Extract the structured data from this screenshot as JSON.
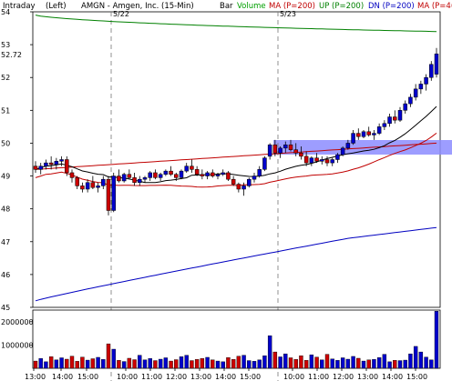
{
  "header": {
    "interval": "Intraday",
    "side": "(Left)",
    "symbol_title": "AMGN - Amgen, Inc. (15-Min)",
    "legend": [
      {
        "label": "Bar",
        "color": "#000000"
      },
      {
        "label": "Volume",
        "color": "#00a000"
      },
      {
        "label": "MA (P=200)",
        "color": "#c00000"
      },
      {
        "label": "UP (P=200)",
        "color": "#008000"
      },
      {
        "label": "DN (P=200)",
        "color": "#0000c0"
      },
      {
        "label": "MA (P=4(",
        "color": "#c00000"
      }
    ]
  },
  "colors": {
    "up_candle": "#0000cc",
    "down_candle": "#cc0000",
    "ma200": "#c00000",
    "upper_band": "#008000",
    "lower_band": "#0000c0",
    "ma_short": "#000000",
    "highlight_band": "#8c8cff",
    "session_divider": "#777777"
  },
  "chart_data": [
    {
      "type": "candlestick",
      "title": "AMGN - Amgen, Inc. (15-Min)",
      "session_labels": [
        "5/22",
        "5/23"
      ],
      "last_price_label": "52.72",
      "ylim": [
        45,
        54
      ],
      "y_ticks": [
        "54",
        "53",
        "52",
        "51",
        "50",
        "49",
        "48",
        "47",
        "46",
        "45"
      ],
      "x_ticks": [
        "13:00",
        "14:00",
        "15:00",
        "10:00",
        "11:00",
        "12:00",
        "13:00",
        "14:00",
        "15:00",
        "10:00",
        "11:00",
        "12:00",
        "13:00",
        "14:00",
        "15:00"
      ],
      "candles": [
        [
          49.3,
          49.45,
          49.1,
          49.2
        ],
        [
          49.2,
          49.4,
          49.05,
          49.3
        ],
        [
          49.3,
          49.5,
          49.2,
          49.4
        ],
        [
          49.4,
          49.6,
          49.2,
          49.35
        ],
        [
          49.35,
          49.55,
          49.2,
          49.45
        ],
        [
          49.45,
          49.6,
          49.3,
          49.5
        ],
        [
          49.5,
          49.6,
          49.0,
          49.1
        ],
        [
          49.1,
          49.2,
          48.8,
          48.95
        ],
        [
          48.95,
          49.0,
          48.6,
          48.7
        ],
        [
          48.7,
          48.8,
          48.5,
          48.6
        ],
        [
          48.6,
          48.9,
          48.5,
          48.8
        ],
        [
          48.8,
          49.0,
          48.6,
          48.65
        ],
        [
          48.65,
          48.8,
          48.5,
          48.7
        ],
        [
          48.7,
          49.0,
          48.6,
          48.9
        ],
        [
          48.9,
          49.0,
          47.8,
          47.95
        ],
        [
          47.95,
          49.1,
          47.9,
          49.0
        ],
        [
          49.0,
          49.2,
          48.8,
          48.85
        ],
        [
          48.85,
          49.1,
          48.8,
          49.05
        ],
        [
          49.05,
          49.2,
          48.9,
          48.95
        ],
        [
          48.95,
          49.1,
          48.7,
          48.8
        ],
        [
          48.8,
          49.0,
          48.7,
          48.9
        ],
        [
          48.9,
          49.0,
          48.8,
          48.95
        ],
        [
          48.95,
          49.15,
          48.85,
          49.1
        ],
        [
          49.1,
          49.2,
          48.9,
          48.95
        ],
        [
          48.95,
          49.1,
          48.85,
          49.05
        ],
        [
          49.05,
          49.2,
          49.0,
          49.15
        ],
        [
          49.15,
          49.3,
          49.0,
          49.05
        ],
        [
          49.05,
          49.1,
          48.85,
          48.95
        ],
        [
          48.95,
          49.2,
          48.9,
          49.15
        ],
        [
          49.15,
          49.4,
          49.1,
          49.3
        ],
        [
          49.3,
          49.5,
          49.1,
          49.2
        ],
        [
          49.2,
          49.3,
          49.0,
          49.05
        ],
        [
          49.05,
          49.2,
          48.9,
          49.0
        ],
        [
          49.0,
          49.15,
          48.9,
          49.1
        ],
        [
          49.1,
          49.2,
          48.95,
          49.0
        ],
        [
          49.0,
          49.1,
          48.9,
          49.05
        ],
        [
          49.05,
          49.2,
          49.0,
          49.1
        ],
        [
          49.1,
          49.15,
          48.85,
          48.9
        ],
        [
          48.9,
          49.0,
          48.7,
          48.75
        ],
        [
          48.75,
          48.8,
          48.5,
          48.6
        ],
        [
          48.6,
          48.8,
          48.4,
          48.7
        ],
        [
          48.7,
          48.95,
          48.65,
          48.9
        ],
        [
          48.9,
          49.1,
          48.8,
          49.0
        ],
        [
          49.0,
          49.3,
          48.95,
          49.2
        ],
        [
          49.2,
          49.6,
          49.15,
          49.55
        ],
        [
          49.6,
          50.0,
          49.5,
          49.95
        ],
        [
          49.95,
          50.1,
          49.6,
          49.7
        ],
        [
          49.7,
          49.9,
          49.55,
          49.85
        ],
        [
          49.85,
          50.05,
          49.7,
          49.95
        ],
        [
          49.95,
          50.1,
          49.75,
          49.8
        ],
        [
          49.8,
          50.0,
          49.6,
          49.7
        ],
        [
          49.7,
          49.9,
          49.5,
          49.6
        ],
        [
          49.6,
          49.75,
          49.3,
          49.4
        ],
        [
          49.4,
          49.6,
          49.3,
          49.55
        ],
        [
          49.55,
          49.7,
          49.4,
          49.45
        ],
        [
          49.45,
          49.6,
          49.35,
          49.5
        ],
        [
          49.5,
          49.6,
          49.3,
          49.4
        ],
        [
          49.4,
          49.55,
          49.3,
          49.5
        ],
        [
          49.5,
          49.7,
          49.4,
          49.65
        ],
        [
          49.65,
          49.9,
          49.6,
          49.85
        ],
        [
          49.85,
          50.1,
          49.8,
          50.0
        ],
        [
          50.0,
          50.4,
          49.95,
          50.3
        ],
        [
          50.3,
          50.45,
          50.1,
          50.2
        ],
        [
          50.2,
          50.4,
          50.15,
          50.35
        ],
        [
          50.35,
          50.5,
          50.2,
          50.25
        ],
        [
          50.25,
          50.4,
          50.1,
          50.3
        ],
        [
          50.3,
          50.6,
          50.25,
          50.5
        ],
        [
          50.5,
          50.7,
          50.4,
          50.6
        ],
        [
          50.6,
          50.9,
          50.5,
          50.8
        ],
        [
          50.8,
          51.0,
          50.6,
          50.7
        ],
        [
          50.7,
          51.1,
          50.65,
          51.0
        ],
        [
          51.0,
          51.3,
          50.9,
          51.2
        ],
        [
          51.2,
          51.5,
          51.1,
          51.4
        ],
        [
          51.4,
          51.8,
          51.3,
          51.65
        ],
        [
          51.65,
          51.9,
          51.5,
          51.8
        ],
        [
          51.8,
          52.1,
          51.6,
          52.0
        ],
        [
          52.0,
          52.5,
          51.9,
          52.4
        ],
        [
          52.1,
          52.9,
          52.0,
          52.72
        ]
      ],
      "volume": {
        "ylim": [
          0,
          2500000
        ],
        "y_ticks": [
          "2000000",
          "1000000"
        ],
        "values": [
          310000,
          420000,
          280000,
          500000,
          360000,
          450000,
          390000,
          520000,
          300000,
          480000,
          350000,
          410000,
          470000,
          380000,
          1050000,
          820000,
          340000,
          290000,
          430000,
          370000,
          560000,
          360000,
          420000,
          330000,
          390000,
          450000,
          310000,
          370000,
          500000,
          560000,
          330000,
          380000,
          420000,
          470000,
          360000,
          310000,
          280000,
          460000,
          380000,
          520000,
          560000,
          330000,
          300000,
          360000,
          540000,
          1400000,
          700000,
          490000,
          620000,
          450000,
          380000,
          540000,
          340000,
          580000,
          480000,
          360000,
          600000,
          400000,
          340000,
          450000,
          390000,
          510000,
          430000,
          310000,
          360000,
          380000,
          460000,
          600000,
          280000,
          340000,
          330000,
          350000,
          620000,
          940000,
          700000,
          480000,
          360000,
          2450000
        ]
      }
    }
  ]
}
